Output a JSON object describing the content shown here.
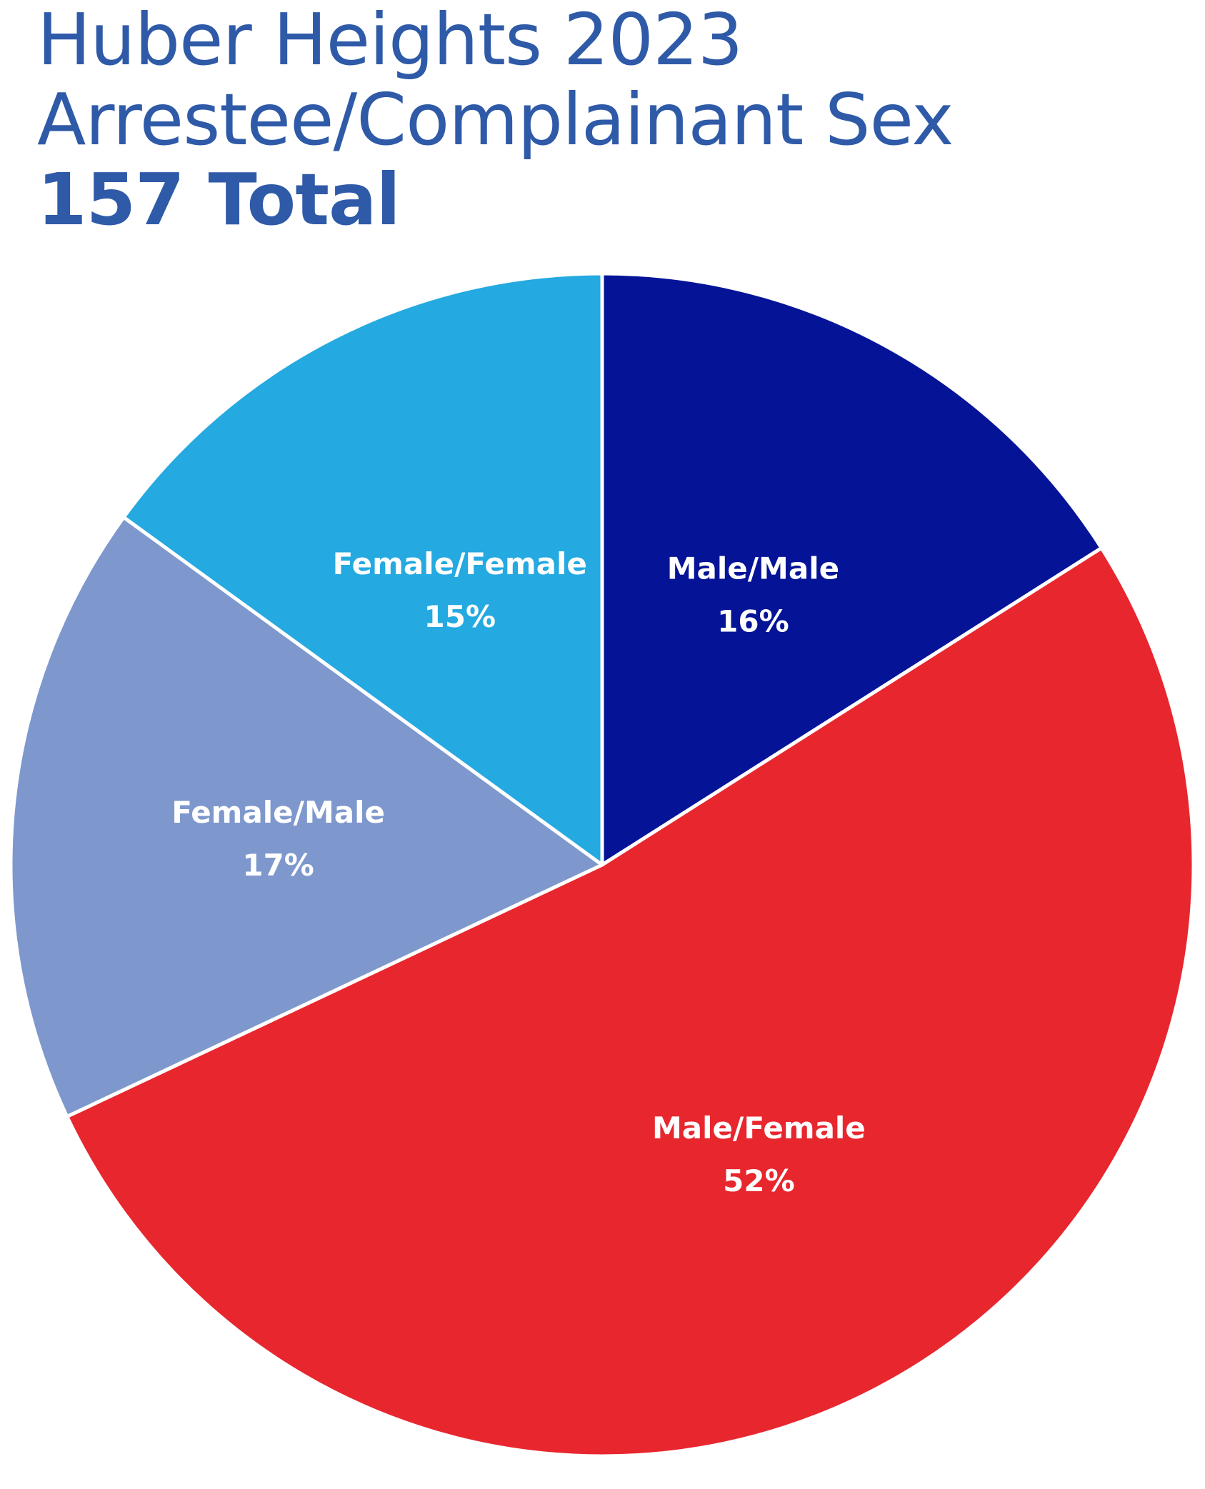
{
  "title": {
    "line1": "Huber Heights 2023",
    "line2": "Arrestee/Complainant Sex",
    "line3": "157 Total"
  },
  "chart_data": {
    "type": "pie",
    "title": "Huber Heights 2023 Arrestee/Complainant Sex 157 Total",
    "start": "12 o'clock, clockwise",
    "slices": [
      {
        "label": "Male/Male",
        "value": 16,
        "display": "16%",
        "color": "#051496"
      },
      {
        "label": "Male/Female",
        "value": 52,
        "display": "52%",
        "color": "#e8262e"
      },
      {
        "label": "Female/Male",
        "value": 17,
        "display": "17%",
        "color": "#7e98cd"
      },
      {
        "label": "Female/Female",
        "value": 15,
        "display": "15%",
        "color": "#24a9e1"
      }
    ],
    "legend": "none"
  }
}
